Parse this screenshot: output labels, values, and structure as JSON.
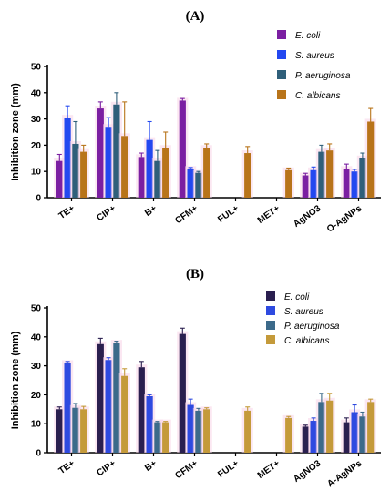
{
  "chart_data": [
    {
      "type": "bar",
      "title": "(A)",
      "ylabel": "Inhibition zone (mm)",
      "xlabel": "",
      "ylim": [
        0,
        50
      ],
      "yticks": [
        0,
        10,
        20,
        30,
        40,
        50
      ],
      "legend_position": "top-right",
      "categories": [
        "TE+",
        "CIP+",
        "B+",
        "CFM+",
        "FUL+",
        "MET+",
        "AgNO3",
        "O-AgNPs"
      ],
      "series": [
        {
          "name": "E. coli",
          "color": "#7b1fa2",
          "values": [
            14,
            34,
            15.5,
            37,
            0,
            0,
            8.5,
            11
          ],
          "errors": [
            2.5,
            2.5,
            1.5,
            0.8,
            0,
            0,
            0.8,
            1.8
          ]
        },
        {
          "name": "S. aureus",
          "color": "#2348f0",
          "values": [
            30.5,
            27,
            22,
            11,
            0,
            0,
            10.5,
            10
          ],
          "errors": [
            4.5,
            3.5,
            7,
            0.5,
            0,
            0,
            1.2,
            0.8
          ]
        },
        {
          "name": "P. aeruginosa",
          "color": "#2f5f7a",
          "values": [
            20.5,
            35.5,
            14,
            9.5,
            0,
            0,
            17.5,
            15
          ],
          "errors": [
            8.5,
            4.5,
            4,
            0.5,
            0,
            0,
            2.5,
            2
          ]
        },
        {
          "name": "C. albicans",
          "color": "#b8741a",
          "values": [
            17.5,
            23.5,
            19,
            19,
            17,
            10.5,
            18,
            29
          ],
          "errors": [
            2.5,
            13,
            6,
            1.5,
            2.5,
            0.8,
            2.5,
            5
          ]
        }
      ]
    },
    {
      "type": "bar",
      "title": "(B)",
      "ylabel": "Inhibition zone (mm)",
      "xlabel": "",
      "ylim": [
        0,
        50
      ],
      "yticks": [
        0,
        10,
        20,
        30,
        40,
        50
      ],
      "legend_position": "top-right",
      "categories": [
        "TE+",
        "CIP+",
        "B+",
        "CFM+",
        "FUL+",
        "MET+",
        "AgNO3",
        "A-AgNPs"
      ],
      "series": [
        {
          "name": "E. coli",
          "color": "#2a1f4f",
          "values": [
            15,
            37.5,
            29.5,
            41,
            0,
            0,
            9,
            10.5
          ],
          "errors": [
            0.8,
            2,
            2,
            2,
            0,
            0,
            0.5,
            1.5
          ]
        },
        {
          "name": "S. aureus",
          "color": "#2e4ae0",
          "values": [
            31,
            32,
            19.5,
            16.5,
            0,
            0,
            11,
            14
          ],
          "errors": [
            0.5,
            0.8,
            0.5,
            2,
            0,
            0,
            1,
            2.5
          ]
        },
        {
          "name": "P. aeruginosa",
          "color": "#3c6a8a",
          "values": [
            15.5,
            38,
            10.5,
            14.5,
            0,
            0,
            17.5,
            12.5
          ],
          "errors": [
            1.5,
            0.5,
            0.3,
            0.8,
            0,
            0,
            3,
            1.5
          ]
        },
        {
          "name": "C. albicans",
          "color": "#c49a3a",
          "values": [
            15,
            26.5,
            10.5,
            15,
            14.5,
            12,
            18,
            17.5
          ],
          "errors": [
            1,
            2.5,
            0.3,
            0.5,
            1.3,
            0.5,
            2.5,
            1
          ]
        }
      ]
    }
  ]
}
